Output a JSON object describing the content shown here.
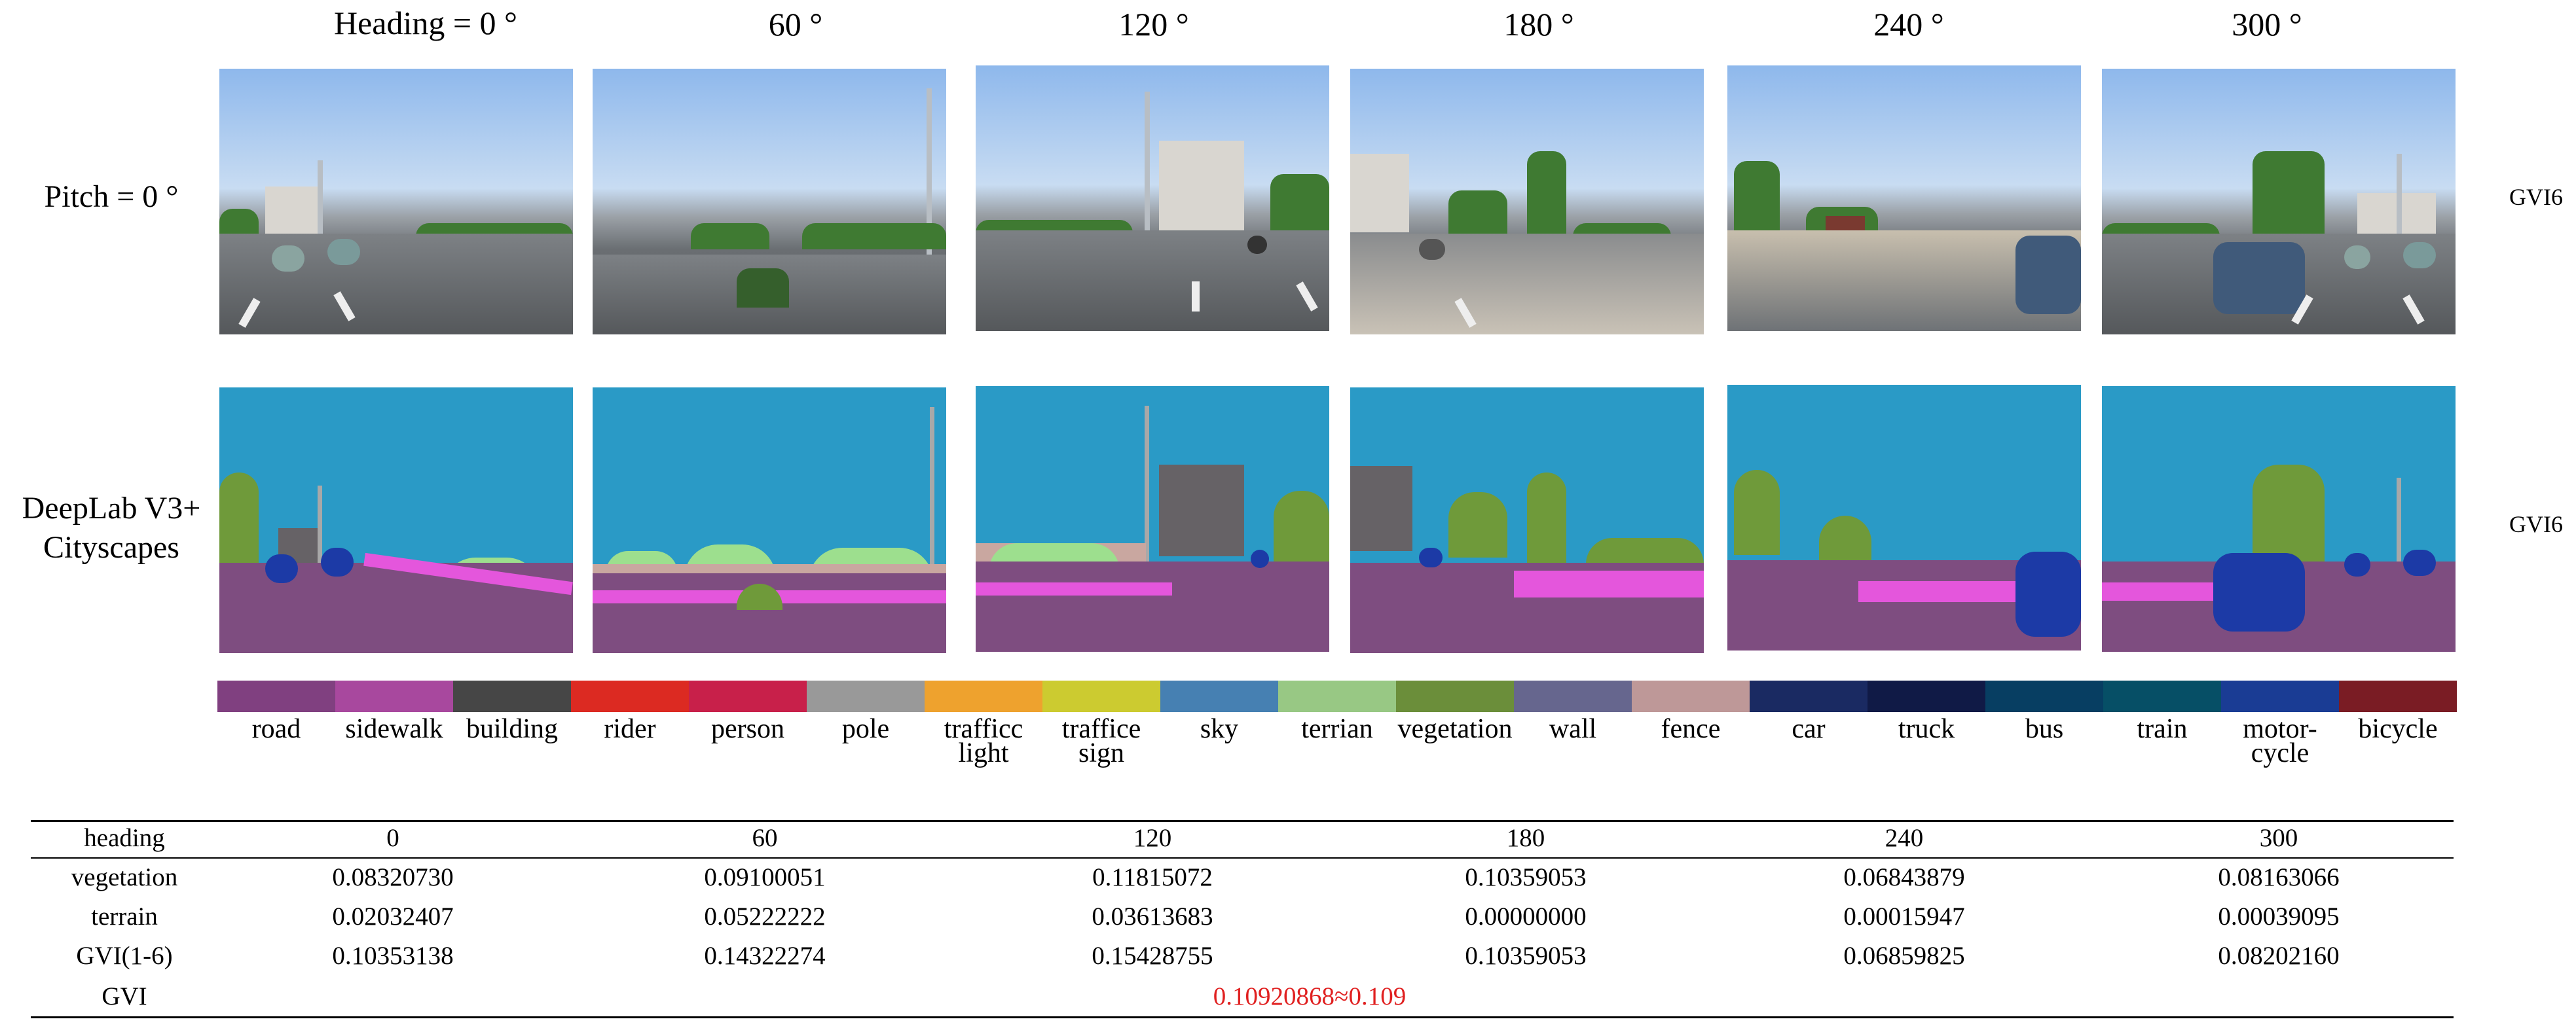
{
  "headings": [
    "Heading = 0 °",
    "60 °",
    "120 °",
    "180 °",
    "240 °",
    "300 °"
  ],
  "row_labels": {
    "pitch": "Pitch = 0 °",
    "model_line1": "DeepLab V3+",
    "model_line2": "Cityscapes"
  },
  "gvi6_labels": [
    "GVI6",
    "GVI6"
  ],
  "legend": [
    {
      "label": "road",
      "label2": "",
      "color": "#804080"
    },
    {
      "label": "sidewalk",
      "label2": "",
      "color": "#a8489e"
    },
    {
      "label": "building",
      "label2": "",
      "color": "#464646"
    },
    {
      "label": "rider",
      "label2": "",
      "color": "#dc2a22"
    },
    {
      "label": "person",
      "label2": "",
      "color": "#c8204a"
    },
    {
      "label": "pole",
      "label2": "",
      "color": "#999999"
    },
    {
      "label": "trafficc",
      "label2": "light",
      "color": "#eea22e"
    },
    {
      "label": "traffice",
      "label2": "sign",
      "color": "#cccb30"
    },
    {
      "label": "sky",
      "label2": "",
      "color": "#4680b2"
    },
    {
      "label": "terrian",
      "label2": "",
      "color": "#98c884"
    },
    {
      "label": "vegetation",
      "label2": "",
      "color": "#6b8e3a"
    },
    {
      "label": "wall",
      "label2": "",
      "color": "#66668e"
    },
    {
      "label": "fence",
      "label2": "",
      "color": "#be9898"
    },
    {
      "label": "car",
      "label2": "",
      "color": "#1a2a62"
    },
    {
      "label": "truck",
      "label2": "",
      "color": "#101a46"
    },
    {
      "label": "bus",
      "label2": "",
      "color": "#073e62"
    },
    {
      "label": "train",
      "label2": "",
      "color": "#064f66"
    },
    {
      "label": "motor-",
      "label2": "cycle",
      "color": "#1a3c94"
    },
    {
      "label": "bicycle",
      "label2": "",
      "color": "#7a1c24"
    }
  ],
  "table": {
    "header": [
      "heading",
      "0",
      "60",
      "120",
      "180",
      "240",
      "300"
    ],
    "rows": [
      [
        "vegetation",
        "0.08320730",
        "0.09100051",
        "0.11815072",
        "0.10359053",
        "0.06843879",
        "0.08163066"
      ],
      [
        "terrain",
        "0.02032407",
        "0.05222222",
        "0.03613683",
        "0.00000000",
        "0.00015947",
        "0.00039095"
      ],
      [
        "GVI(1-6)",
        "0.10353138",
        "0.14322274",
        "0.15428755",
        "0.10359053",
        "0.06859825",
        "0.08202160"
      ]
    ],
    "gvi_label": "GVI",
    "gvi_value": "0.10920868≈0.109",
    "gvi_value_color": "#e02020"
  }
}
